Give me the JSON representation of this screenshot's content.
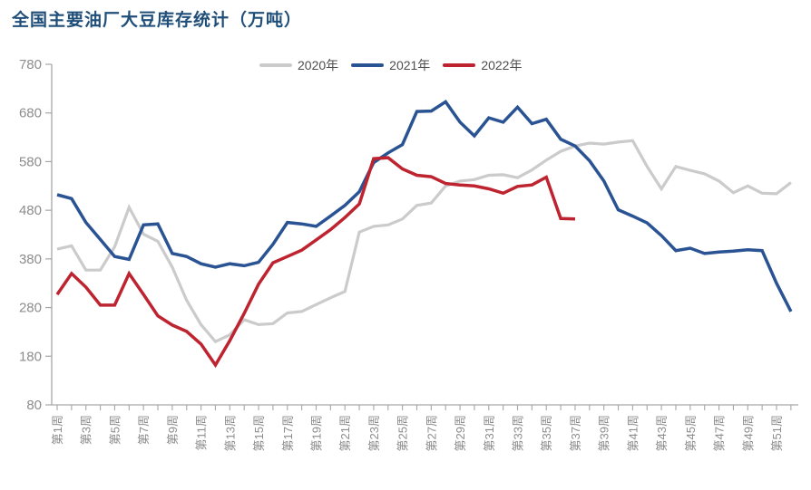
{
  "title": "全国主要油厂大豆库存统计（万吨）",
  "colors": {
    "title_text": "#1F4E79",
    "axis_line": "#A6A6A6",
    "tick_label": "#8C8C8C",
    "legend_text": "#4D4D4D",
    "background": "#FFFFFF"
  },
  "chart_data": {
    "type": "line",
    "title": "全国主要油厂大豆库存统计（万吨）",
    "xlabel": "",
    "ylabel": "",
    "ylim": [
      80,
      780
    ],
    "yticks": [
      780,
      680,
      580,
      480,
      380,
      280,
      180,
      80
    ],
    "grid": false,
    "legend_position": "top-center",
    "x_weeks": 52,
    "x_tick_labels": [
      "第1周",
      "第3周",
      "第5周",
      "第7周",
      "第9周",
      "第11周",
      "第13周",
      "第15周",
      "第17周",
      "第19周",
      "第21周",
      "第23周",
      "第25周",
      "第27周",
      "第29周",
      "第31周",
      "第33周",
      "第35周",
      "第37周",
      "第39周",
      "第41周",
      "第43周",
      "第45周",
      "第47周",
      "第49周",
      "第51周"
    ],
    "series": [
      {
        "name": "2020年",
        "color": "#CBCBCB",
        "values": [
          400,
          407,
          357,
          357,
          405,
          486,
          431,
          416,
          363,
          295,
          245,
          210,
          224,
          255,
          245,
          247,
          269,
          272,
          286,
          300,
          313,
          435,
          447,
          450,
          462,
          490,
          495,
          530,
          540,
          543,
          552,
          553,
          547,
          563,
          583,
          601,
          612,
          618,
          616,
          620,
          623,
          570,
          524,
          570,
          562,
          555,
          540,
          516,
          530,
          515,
          514,
          537
        ]
      },
      {
        "name": "2021年",
        "color": "#2A5393",
        "values": [
          512,
          504,
          455,
          420,
          385,
          379,
          450,
          452,
          391,
          385,
          370,
          363,
          370,
          366,
          373,
          410,
          455,
          452,
          447,
          468,
          490,
          518,
          578,
          598,
          615,
          683,
          684,
          703,
          661,
          633,
          670,
          661,
          692,
          658,
          667,
          626,
          612,
          582,
          540,
          481,
          468,
          454,
          428,
          397,
          402,
          391,
          394,
          396,
          399,
          397,
          330,
          272
        ]
      },
      {
        "name": "2022年",
        "color": "#BE2330",
        "values": [
          307,
          350,
          322,
          285,
          285,
          350,
          307,
          263,
          244,
          231,
          205,
          162,
          212,
          268,
          328,
          372,
          385,
          398,
          419,
          440,
          465,
          493,
          586,
          588,
          565,
          552,
          549,
          535,
          532,
          530,
          524,
          515,
          529,
          532,
          548,
          463,
          462
        ]
      }
    ]
  }
}
